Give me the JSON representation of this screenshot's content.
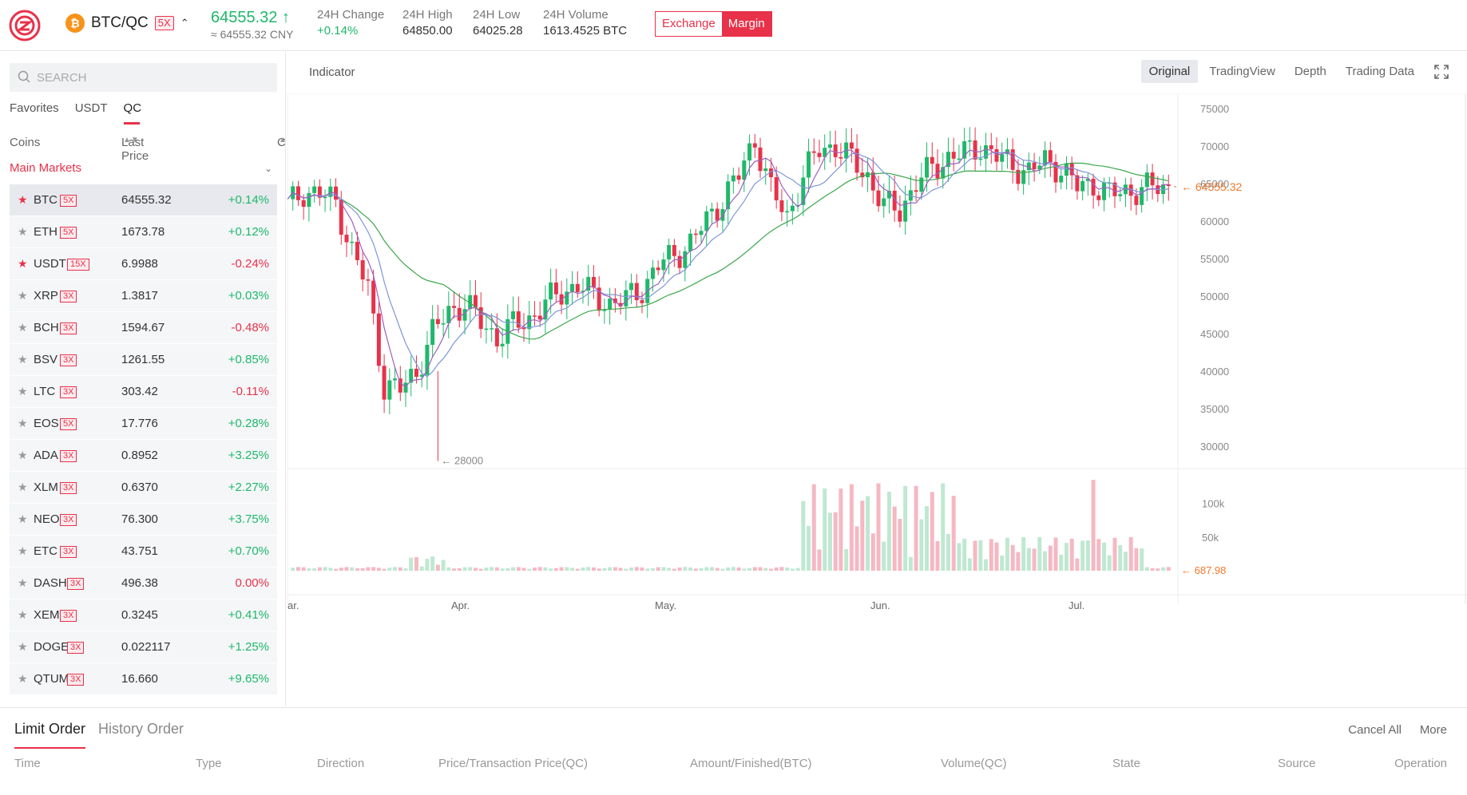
{
  "header": {
    "coin_glyph": "₿",
    "pair": "BTC/QC",
    "leverage": "5X",
    "last_price": "64555.32",
    "price_cny": "≈ 64555.32 CNY",
    "stats": [
      {
        "label": "24H Change",
        "value": "+0.14%",
        "color": "green"
      },
      {
        "label": "24H High",
        "value": "64850.00"
      },
      {
        "label": "24H Low",
        "value": "64025.28"
      },
      {
        "label": "24H Volume",
        "value": "1613.4525 BTC"
      }
    ],
    "mode_exchange": "Exchange",
    "mode_margin": "Margin"
  },
  "sidebar": {
    "search_placeholder": "SEARCH",
    "tabs": [
      "Favorites",
      "USDT",
      "QC"
    ],
    "active_tab": "QC",
    "col_coins": "Coins",
    "col_last_price": "Last Price",
    "col_change": "Change",
    "group_label": "Main Markets",
    "coins": [
      {
        "sym": "BTC",
        "lev": "5X",
        "price": "64555.32",
        "change": "+0.14%",
        "fav": true,
        "selected": true
      },
      {
        "sym": "ETH",
        "lev": "5X",
        "price": "1673.78",
        "change": "+0.12%",
        "fav": false
      },
      {
        "sym": "USDT",
        "lev": "15X",
        "price": "6.9988",
        "change": "-0.24%",
        "fav": true
      },
      {
        "sym": "XRP",
        "lev": "3X",
        "price": "1.3817",
        "change": "+0.03%",
        "fav": false
      },
      {
        "sym": "BCH",
        "lev": "3X",
        "price": "1594.67",
        "change": "-0.48%",
        "fav": false
      },
      {
        "sym": "BSV",
        "lev": "3X",
        "price": "1261.55",
        "change": "+0.85%",
        "fav": false
      },
      {
        "sym": "LTC",
        "lev": "3X",
        "price": "303.42",
        "change": "-0.11%",
        "fav": false
      },
      {
        "sym": "EOS",
        "lev": "5X",
        "price": "17.776",
        "change": "+0.28%",
        "fav": false
      },
      {
        "sym": "ADA",
        "lev": "3X",
        "price": "0.8952",
        "change": "+3.25%",
        "fav": false
      },
      {
        "sym": "XLM",
        "lev": "3X",
        "price": "0.6370",
        "change": "+2.27%",
        "fav": false
      },
      {
        "sym": "NEO",
        "lev": "3X",
        "price": "76.300",
        "change": "+3.75%",
        "fav": false
      },
      {
        "sym": "ETC",
        "lev": "3X",
        "price": "43.751",
        "change": "+0.70%",
        "fav": false
      },
      {
        "sym": "DASH",
        "lev": "3X",
        "price": "496.38",
        "change": "0.00%",
        "fav": false
      },
      {
        "sym": "XEM",
        "lev": "3X",
        "price": "0.3245",
        "change": "+0.41%",
        "fav": false
      },
      {
        "sym": "DOGE",
        "lev": "3X",
        "price": "0.022117",
        "change": "+1.25%",
        "fav": false
      },
      {
        "sym": "QTUM",
        "lev": "3X",
        "price": "16.660",
        "change": "+9.65%",
        "fav": false
      }
    ]
  },
  "chart": {
    "indicator_label": "Indicator",
    "views": [
      "Original",
      "TradingView",
      "Depth",
      "Trading Data"
    ],
    "active_view": "Original",
    "price_ticks": [
      75000,
      70000,
      65000,
      60000,
      55000,
      50000,
      45000,
      40000,
      35000,
      30000
    ],
    "current_price_label": "64555.32",
    "low_marker_label": "28000",
    "volume_ticks": [
      "100k",
      "50k"
    ],
    "current_volume_label": "687.98",
    "month_labels": [
      "ar.",
      "Apr.",
      "May.",
      "Jun.",
      "Jul."
    ],
    "colors": {
      "up": "#1fb86a",
      "down": "#e8324a",
      "ma_slow": "#3aa64a",
      "ma_mid": "#7f96d8",
      "ma_fast": "#a05fc0",
      "price_tag": "#f0782a"
    }
  },
  "chart_data": {
    "type": "candlestick",
    "price_ylim": [
      27000,
      77000
    ],
    "close_series_approx": [
      62000,
      64000,
      63500,
      62500,
      56000,
      51000,
      38000,
      37500,
      40000,
      45000,
      48000,
      49000,
      46500,
      44500,
      46000,
      47000,
      49000,
      50500,
      51500,
      50000,
      49000,
      49500,
      51000,
      54000,
      55500,
      57000,
      60000,
      63000,
      66000,
      71000,
      64000,
      60500,
      66000,
      69500,
      70000,
      68000,
      66000,
      62000,
      61500,
      65000,
      67000,
      68500,
      69000,
      70000,
      68500,
      67500,
      66500,
      68000,
      67000,
      64500,
      65000,
      63500,
      64000,
      64200,
      64555
    ],
    "volume_max": 140000
  },
  "orders": {
    "tabs": [
      "Limit Order",
      "History Order"
    ],
    "cancel_all": "Cancel All",
    "more": "More",
    "columns": [
      "Time",
      "Type",
      "Direction",
      "Price/Transaction Price(QC)",
      "Amount/Finished(BTC)",
      "Volume(QC)",
      "State",
      "Source",
      "Operation"
    ]
  }
}
